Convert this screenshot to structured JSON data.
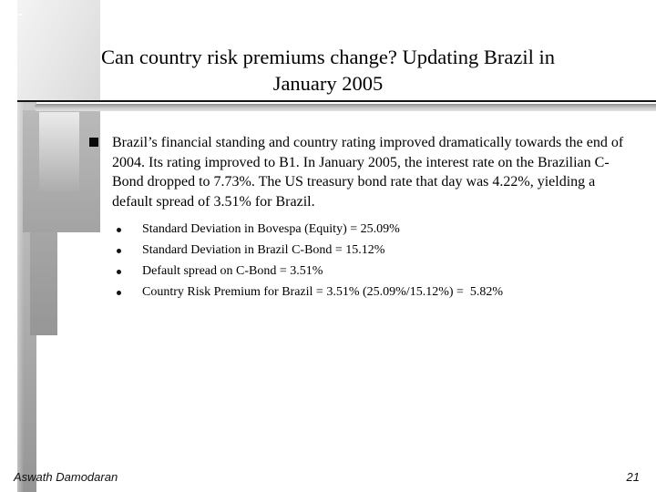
{
  "slide": {
    "title": [
      "Can country risk premiums change? Updating Brazil in",
      "January 2005"
    ],
    "bullet_text": "Brazil’s financial standing and country rating improved dramatically towards the end of 2004. Its rating improved to B1. In January 2005, the interest rate on the Brazilian C-Bond dropped to 7.73%. The US treasury bond rate that day was 4.22%, yielding a default spread of 3.51% for Brazil.",
    "sub_bullets": [
      "Standard Deviation in Bovespa (Equity) = 25.09%",
      "Standard Deviation in Brazil C-Bond = 15.12%",
      "Default spread on C-Bond = 3.51%",
      "Country Risk Premium for Brazil = 3.51% (25.09%/15.12%) =  5.82%"
    ],
    "footer": {
      "author": "Aswath Damodaran",
      "page_number": "21"
    },
    "theme": {
      "background": "#ffffff",
      "text_color": "#000000",
      "divider_color": "#151515",
      "decor_grays": [
        "#f2f2f2",
        "#b8b8b8",
        "#9a9a9a",
        "#959595"
      ]
    }
  }
}
